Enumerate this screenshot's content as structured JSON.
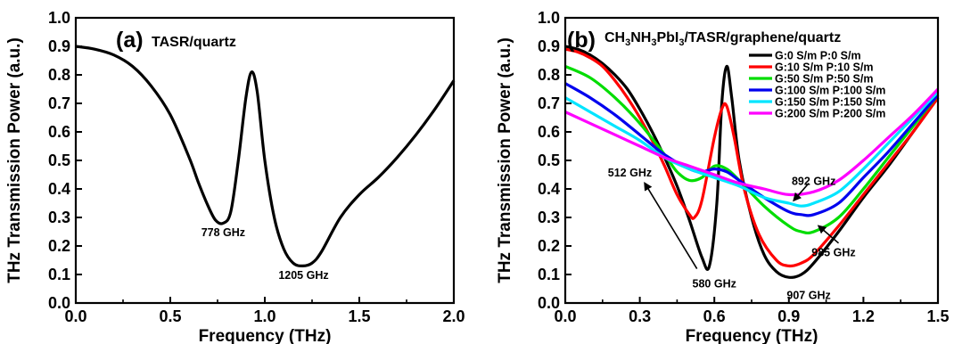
{
  "chart_data": [
    {
      "type": "line",
      "panel": "(a)",
      "title": "TASR/quartz",
      "xlabel": "Frequency (THz)",
      "ylabel": "THz Transmission Power (a.u.)",
      "xlim": [
        0,
        2.0
      ],
      "ylim": [
        0,
        1.0
      ],
      "xticks": [
        "0.0",
        "0.5",
        "1.0",
        "1.5",
        "2.0"
      ],
      "yticks": [
        "0.0",
        "0.1",
        "0.2",
        "0.3",
        "0.4",
        "0.5",
        "0.6",
        "0.7",
        "0.8",
        "0.9",
        "1.0"
      ],
      "series": [
        {
          "color": "#000000",
          "x": [
            0.0,
            0.1,
            0.2,
            0.3,
            0.4,
            0.5,
            0.6,
            0.65,
            0.7,
            0.74,
            0.78,
            0.82,
            0.86,
            0.9,
            0.93,
            0.96,
            1.0,
            1.05,
            1.1,
            1.15,
            1.2,
            1.25,
            1.3,
            1.4,
            1.5,
            1.6,
            1.7,
            1.8,
            1.9,
            2.0
          ],
          "y": [
            0.9,
            0.89,
            0.87,
            0.83,
            0.76,
            0.66,
            0.51,
            0.42,
            0.34,
            0.29,
            0.28,
            0.32,
            0.5,
            0.72,
            0.81,
            0.74,
            0.5,
            0.3,
            0.19,
            0.14,
            0.13,
            0.14,
            0.18,
            0.3,
            0.38,
            0.44,
            0.51,
            0.59,
            0.68,
            0.78
          ]
        }
      ],
      "annotations": [
        {
          "text": "778 GHz",
          "x": 0.78,
          "y": 0.25
        },
        {
          "text": "1205 GHz",
          "x": 1.205,
          "y": 0.1
        }
      ]
    },
    {
      "type": "line",
      "panel": "(b)",
      "title": "CH3NH3PbI3/TASR/graphene/quartz",
      "xlabel": "Frequency (THz)",
      "ylabel": "THz Transmission Power (a.u.)",
      "xlim": [
        0,
        1.5
      ],
      "ylim": [
        0,
        1.0
      ],
      "xticks": [
        "0.0",
        "0.3",
        "0.6",
        "0.9",
        "1.2",
        "1.5"
      ],
      "yticks": [
        "0.0",
        "0.1",
        "0.2",
        "0.3",
        "0.4",
        "0.5",
        "0.6",
        "0.7",
        "0.8",
        "0.9",
        "1.0"
      ],
      "series": [
        {
          "name": "G:0 S/m P:0 S/m",
          "color": "#000000",
          "x": [
            0.0,
            0.05,
            0.1,
            0.15,
            0.2,
            0.25,
            0.3,
            0.35,
            0.4,
            0.45,
            0.5,
            0.55,
            0.58,
            0.61,
            0.63,
            0.65,
            0.67,
            0.7,
            0.75,
            0.8,
            0.85,
            0.9,
            0.95,
            1.0,
            1.1,
            1.2,
            1.3,
            1.4,
            1.5
          ],
          "y": [
            0.9,
            0.89,
            0.87,
            0.84,
            0.8,
            0.75,
            0.68,
            0.6,
            0.51,
            0.41,
            0.29,
            0.16,
            0.13,
            0.35,
            0.7,
            0.83,
            0.72,
            0.5,
            0.3,
            0.17,
            0.11,
            0.09,
            0.1,
            0.14,
            0.25,
            0.37,
            0.48,
            0.6,
            0.72
          ]
        },
        {
          "name": "G:10 S/m P:10 S/m",
          "color": "#ff0000",
          "x": [
            0.0,
            0.05,
            0.1,
            0.15,
            0.2,
            0.25,
            0.3,
            0.35,
            0.4,
            0.45,
            0.5,
            0.52,
            0.55,
            0.6,
            0.63,
            0.65,
            0.68,
            0.72,
            0.78,
            0.85,
            0.9,
            0.95,
            1.0,
            1.1,
            1.2,
            1.3,
            1.4,
            1.5
          ],
          "y": [
            0.89,
            0.88,
            0.86,
            0.83,
            0.78,
            0.72,
            0.65,
            0.57,
            0.48,
            0.38,
            0.31,
            0.3,
            0.36,
            0.58,
            0.68,
            0.69,
            0.58,
            0.4,
            0.24,
            0.15,
            0.13,
            0.14,
            0.17,
            0.27,
            0.38,
            0.49,
            0.6,
            0.72
          ]
        },
        {
          "name": "G:50 S/m P:50 S/m",
          "color": "#00dd00",
          "x": [
            0.0,
            0.1,
            0.2,
            0.3,
            0.4,
            0.45,
            0.5,
            0.55,
            0.6,
            0.65,
            0.7,
            0.8,
            0.9,
            0.95,
            1.0,
            1.1,
            1.2,
            1.3,
            1.4,
            1.5
          ],
          "y": [
            0.83,
            0.79,
            0.72,
            0.63,
            0.52,
            0.46,
            0.43,
            0.44,
            0.48,
            0.47,
            0.43,
            0.34,
            0.27,
            0.25,
            0.25,
            0.3,
            0.4,
            0.51,
            0.62,
            0.73
          ]
        },
        {
          "name": "G:100 S/m P:100 S/m",
          "color": "#0000ee",
          "x": [
            0.0,
            0.1,
            0.2,
            0.3,
            0.4,
            0.5,
            0.55,
            0.6,
            0.65,
            0.7,
            0.8,
            0.9,
            0.95,
            1.0,
            1.1,
            1.2,
            1.3,
            1.4,
            1.5
          ],
          "y": [
            0.77,
            0.72,
            0.66,
            0.59,
            0.52,
            0.47,
            0.46,
            0.47,
            0.46,
            0.43,
            0.37,
            0.32,
            0.31,
            0.31,
            0.35,
            0.44,
            0.53,
            0.63,
            0.73
          ]
        },
        {
          "name": "G:150 S/m P:150 S/m",
          "color": "#00e5ff",
          "x": [
            0.0,
            0.1,
            0.2,
            0.3,
            0.4,
            0.5,
            0.6,
            0.7,
            0.8,
            0.9,
            0.95,
            1.0,
            1.1,
            1.2,
            1.3,
            1.4,
            1.5
          ],
          "y": [
            0.72,
            0.67,
            0.62,
            0.57,
            0.51,
            0.47,
            0.44,
            0.41,
            0.37,
            0.35,
            0.34,
            0.35,
            0.39,
            0.47,
            0.56,
            0.65,
            0.74
          ]
        },
        {
          "name": "G:200 S/m P:200 S/m",
          "color": "#ff00ff",
          "x": [
            0.0,
            0.1,
            0.2,
            0.3,
            0.4,
            0.5,
            0.6,
            0.7,
            0.8,
            0.9,
            1.0,
            1.1,
            1.2,
            1.3,
            1.4,
            1.5
          ],
          "y": [
            0.67,
            0.63,
            0.59,
            0.55,
            0.51,
            0.48,
            0.45,
            0.42,
            0.4,
            0.38,
            0.39,
            0.43,
            0.5,
            0.58,
            0.66,
            0.75
          ]
        }
      ],
      "legend_position": "top-right",
      "annotations": [
        {
          "text": "512 GHz",
          "x": 0.26,
          "y": 0.46
        },
        {
          "text": "580 GHz",
          "x": 0.6,
          "y": 0.07
        },
        {
          "text": "892 GHz",
          "x": 1.0,
          "y": 0.43
        },
        {
          "text": "985 GHz",
          "x": 1.08,
          "y": 0.18
        },
        {
          "text": "907 GHz",
          "x": 0.98,
          "y": 0.03
        }
      ]
    }
  ]
}
